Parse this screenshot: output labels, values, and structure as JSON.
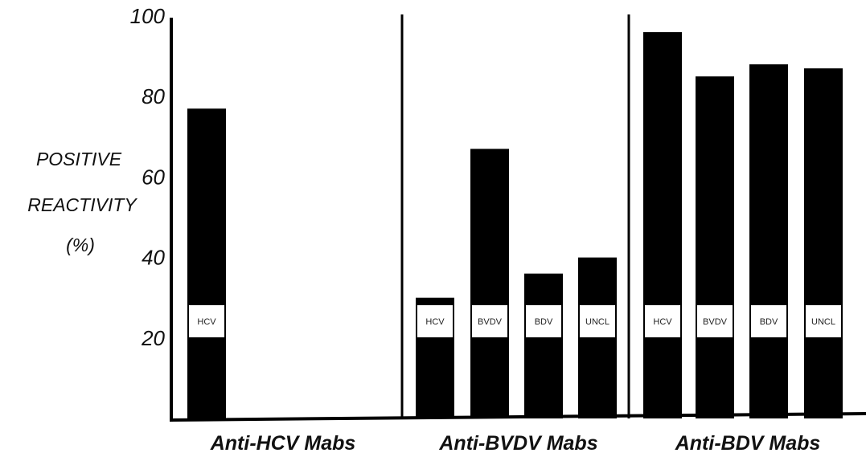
{
  "chart_data": {
    "type": "bar",
    "ylabel": [
      "POSITIVE",
      "REACTIVITY",
      "(%)"
    ],
    "ylim": [
      0,
      100
    ],
    "yticks": [
      20,
      40,
      60,
      80,
      100
    ],
    "grid": false,
    "groups": [
      {
        "label": "Anti-HCV Mabs",
        "bars": [
          {
            "label": "HCV",
            "value": 77
          }
        ]
      },
      {
        "label": "Anti-BVDV Mabs",
        "bars": [
          {
            "label": "HCV",
            "value": 30
          },
          {
            "label": "BVDV",
            "value": 67
          },
          {
            "label": "BDV",
            "value": 36
          },
          {
            "label": "UNCL",
            "value": 40
          }
        ]
      },
      {
        "label": "Anti-BDV Mabs",
        "bars": [
          {
            "label": "HCV",
            "value": 96
          },
          {
            "label": "BVDV",
            "value": 85
          },
          {
            "label": "BDV",
            "value": 88
          },
          {
            "label": "UNCL",
            "value": 87
          }
        ]
      }
    ],
    "colors": {
      "bar": "#000000",
      "label_box": "#ffffff",
      "axis": "#000000"
    }
  }
}
